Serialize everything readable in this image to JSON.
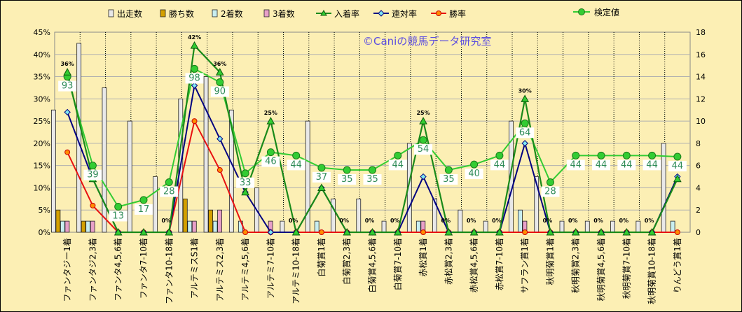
{
  "chart_data": {
    "type": "bar",
    "copyright": "©Caniの競馬データ研究室",
    "categories": [
      "ファンタジー1着",
      "ファンタジ2,3着",
      "ファンタ4,5,6着",
      "ファンタ7-10着",
      "ファンタ10-18着",
      "アルテミスS1着",
      "アルテミス2,3着",
      "アルテミ4,5,6着",
      "アルテミ7-10着",
      "アルテミ10-18着",
      "白菊賞1着",
      "白菊賞2,3着",
      "白菊賞4,5,6着",
      "白菊賞7-10着",
      "赤松賞1着",
      "赤松賞2,3着",
      "赤松賞4,5,6着",
      "赤松賞7-10着",
      "サフラン賞1着",
      "秋明菊賞1着",
      "秋明菊賞2,3着",
      "秋明菊賞4,5,6着",
      "秋明菊賞7-10着",
      "秋明菊賞10-18着",
      "りんどう賞1着"
    ],
    "left_axis": {
      "min": 0,
      "max": 0.45,
      "ticks": [
        "0%",
        "5%",
        "10%",
        "15%",
        "20%",
        "25%",
        "30%",
        "35%",
        "40%",
        "45%"
      ]
    },
    "right_axis": {
      "min": 0,
      "max": 18,
      "ticks": [
        "0",
        "2",
        "4",
        "6",
        "8",
        "10",
        "12",
        "14",
        "16",
        "18"
      ]
    },
    "legend": [
      {
        "name": "出走数",
        "kind": "bar",
        "color": "#e8e8e8"
      },
      {
        "name": "勝ち数",
        "kind": "bar",
        "color": "#d4a000"
      },
      {
        "name": "2着数",
        "kind": "bar",
        "color": "#c8eef0"
      },
      {
        "name": "3着数",
        "kind": "bar",
        "color": "#e8a0c8"
      },
      {
        "name": "入着率",
        "kind": "line",
        "color": "#1a8a1a",
        "marker": "triangle"
      },
      {
        "name": "連対率",
        "kind": "line",
        "color": "#000080",
        "marker": "diamond"
      },
      {
        "name": "勝率",
        "kind": "line",
        "color": "#e81010",
        "marker": "circle"
      }
    ],
    "score_legend": {
      "name": "検定値",
      "color": "#33cc33"
    },
    "bar_series": [
      {
        "name": "出走数",
        "axis": "right",
        "color": "#e8e8e8",
        "values": [
          11,
          17,
          13,
          10,
          5,
          12,
          14,
          11,
          4,
          1,
          10,
          3,
          3,
          1,
          8,
          3,
          2,
          1,
          10,
          5,
          1,
          1,
          1,
          1,
          8
        ]
      },
      {
        "name": "勝ち数",
        "axis": "right",
        "color": "#d4a000",
        "values": [
          2,
          1,
          0,
          0,
          0,
          3,
          2,
          0,
          0,
          0,
          0,
          0,
          0,
          0,
          0,
          0,
          0,
          0,
          0,
          0,
          0,
          0,
          0,
          0,
          0
        ]
      },
      {
        "name": "2着数",
        "axis": "right",
        "color": "#c8eef0",
        "values": [
          1,
          1,
          0,
          0,
          0,
          1,
          1,
          1,
          0,
          0,
          1,
          0,
          0,
          0,
          1,
          0,
          0,
          0,
          2,
          0,
          0,
          0,
          0,
          0,
          1
        ]
      },
      {
        "name": "3着数",
        "axis": "right",
        "color": "#e8a0c8",
        "values": [
          1,
          1,
          0,
          0,
          0,
          1,
          2,
          0,
          1,
          0,
          0,
          0,
          0,
          0,
          1,
          0,
          0,
          0,
          1,
          0,
          0,
          0,
          0,
          0,
          0
        ]
      }
    ],
    "line_series": [
      {
        "name": "入着率",
        "axis": "left",
        "color": "#1a8a1a",
        "marker": "triangle",
        "values": [
          0.36,
          0.12,
          0,
          0,
          0,
          0.42,
          0.36,
          0.09,
          0.25,
          0,
          0.1,
          0,
          0,
          0,
          0.25,
          0,
          0,
          0,
          0.3,
          0,
          0,
          0,
          0,
          0,
          0.12
        ]
      },
      {
        "name": "連対率",
        "axis": "left",
        "color": "#000080",
        "marker": "diamond",
        "values": [
          0.27,
          0.12,
          0,
          0,
          0,
          0.33,
          0.21,
          0.09,
          0,
          0,
          0.1,
          0,
          0,
          0,
          0.125,
          0,
          0,
          0,
          0.2,
          0,
          0,
          0,
          0,
          0,
          0.125
        ]
      },
      {
        "name": "勝率",
        "axis": "left",
        "color": "#e81010",
        "marker": "circle",
        "values": [
          0.18,
          0.06,
          0,
          0,
          0,
          0.25,
          0.14,
          0,
          0,
          0,
          0,
          0,
          0,
          0,
          0,
          0,
          0,
          0,
          0,
          0,
          0,
          0,
          0,
          0,
          0
        ]
      },
      {
        "name": "検定値",
        "axis": "right",
        "color": "#33cc33",
        "marker": "circle",
        "values": [
          14,
          6,
          2.3,
          2.9,
          4.5,
          14.7,
          13.5,
          5.3,
          7.2,
          6.9,
          5.8,
          5.6,
          5.6,
          6.9,
          8.3,
          5.6,
          6.1,
          6.9,
          9.8,
          4.5,
          6.9,
          6.9,
          6.9,
          6.9,
          6.8
        ]
      }
    ],
    "score_labels": [
      "93",
      "39",
      "13",
      "17",
      "28",
      "98",
      "90",
      "33",
      "46",
      "44",
      "37",
      "35",
      "35",
      "44",
      "54",
      "35",
      "40",
      "44",
      "64",
      "28",
      "44",
      "44",
      "44",
      "44",
      "44"
    ],
    "pct_labels": [
      {
        "index": 0,
        "text": "36%"
      },
      {
        "index": 5,
        "text": "42%"
      },
      {
        "index": 6,
        "text": "36%"
      },
      {
        "index": 8,
        "text": "25%"
      },
      {
        "index": 14,
        "text": "25%"
      },
      {
        "index": 18,
        "text": "30%"
      }
    ],
    "zero_labels": [
      "0%",
      "0%",
      "0%",
      "0%",
      "0%",
      "0%",
      "0%",
      "0%",
      "0%",
      "0%",
      "0%",
      "0%",
      "0%"
    ]
  }
}
